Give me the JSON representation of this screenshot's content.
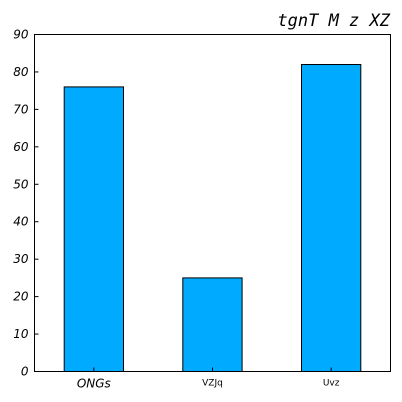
{
  "chart_data": {
    "type": "bar",
    "title": "tgnT M z XZ",
    "xlabel": "",
    "ylabel": "",
    "categories": [
      "ONGs",
      "VZJq",
      "Uvz"
    ],
    "values": [
      76,
      25,
      82
    ],
    "ylim": [
      0,
      90
    ],
    "yticks": [
      0,
      10,
      20,
      30,
      40,
      50,
      60,
      70,
      80,
      90
    ],
    "bar_color": "#00aaff",
    "edge_color": "#000000",
    "grid": false,
    "legend": "none"
  }
}
